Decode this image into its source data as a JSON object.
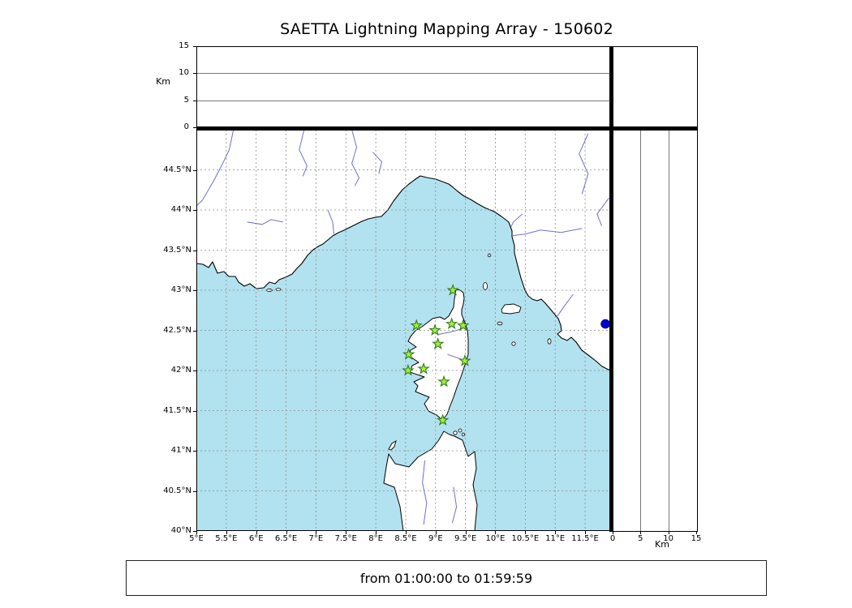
{
  "title": "SAETTA Lightning Mapping Array - 150602",
  "footer": {
    "text": "from 01:00:00 to 01:59:59"
  },
  "axes": {
    "km_label": "Km",
    "altitude": {
      "ticks": [
        0,
        5,
        10,
        15
      ],
      "labels": [
        "0",
        "5",
        "10",
        "15"
      ],
      "gridlines": [
        5,
        10
      ],
      "range": [
        0,
        15
      ]
    },
    "longitude": {
      "ticks": [
        5,
        5.5,
        6,
        6.5,
        7,
        7.5,
        8,
        8.5,
        9,
        9.5,
        10,
        10.5,
        11,
        11.5
      ],
      "labels": [
        "5°E",
        "5.5°E",
        "6°E",
        "6.5°E",
        "7°E",
        "7.5°E",
        "8°E",
        "8.5°E",
        "9°E",
        "9.5°E",
        "10°E",
        "10.5°E",
        "11°E",
        "11.5°E"
      ],
      "range": [
        5,
        11.92
      ]
    },
    "latitude": {
      "ticks": [
        40,
        40.5,
        41,
        41.5,
        42,
        42.5,
        43,
        43.5,
        44,
        44.5
      ],
      "labels": [
        "40°N",
        "40.5°N",
        "41°N",
        "41.5°N",
        "42°N",
        "42.5°N",
        "43°N",
        "43.5°N",
        "44°N",
        "44.5°N"
      ],
      "range": [
        40,
        45
      ]
    }
  },
  "chart_data": {
    "type": "scatter",
    "title": "SAETTA Lightning Mapping Array - 150602",
    "time_window": "from 01:00:00 to 01:59:59",
    "map": {
      "lon_range": [
        5,
        11.92
      ],
      "lat_range": [
        40,
        45
      ],
      "grid": "dashed every 0.5 degree"
    },
    "altitude_panels": {
      "unit": "Km",
      "range": [
        0,
        15
      ],
      "gridlines_km": [
        5,
        10
      ],
      "data_points": []
    },
    "stations": [
      {
        "lon": 9.29,
        "lat": 43.0
      },
      {
        "lon": 8.68,
        "lat": 42.56
      },
      {
        "lon": 8.99,
        "lat": 42.5
      },
      {
        "lon": 9.27,
        "lat": 42.58
      },
      {
        "lon": 9.46,
        "lat": 42.56
      },
      {
        "lon": 9.04,
        "lat": 42.33
      },
      {
        "lon": 8.55,
        "lat": 42.2
      },
      {
        "lon": 9.49,
        "lat": 42.12
      },
      {
        "lon": 8.54,
        "lat": 42.0
      },
      {
        "lon": 8.8,
        "lat": 42.02
      },
      {
        "lon": 9.14,
        "lat": 41.86
      },
      {
        "lon": 9.12,
        "lat": 41.38
      }
    ],
    "other_marker": {
      "lon": 11.84,
      "lat": 42.58,
      "shape": "circle"
    }
  },
  "colors": {
    "sea": "#b2e2ef",
    "land": "#ffffff",
    "coastline": "#000000",
    "rivers": "#6f6fd0",
    "grid": "#8a8a8a",
    "station_fill": "#aaee3c",
    "station_edge": "#2e7d1a",
    "marker_blue": "#0000cc"
  }
}
